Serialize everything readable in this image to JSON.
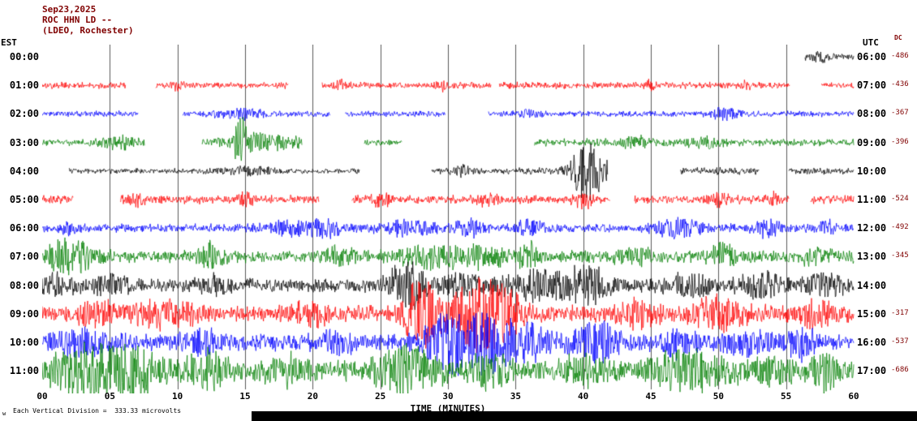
{
  "header": {
    "date": "Sep23,2025",
    "station": "ROC HHN LD --",
    "location": "(LDEO, Rochester)"
  },
  "axes": {
    "left_header": "EST",
    "right_header": "UTC",
    "dc_header": "DC",
    "x_label": "TIME (MINUTES)",
    "x_ticks": [
      "00",
      "05",
      "10",
      "15",
      "20",
      "25",
      "30",
      "35",
      "40",
      "45",
      "50",
      "55",
      "60"
    ]
  },
  "footer": {
    "corner": "w",
    "caption": "Each Vertical Division =  333.33 microvolts"
  },
  "chart_data": {
    "type": "line",
    "kind": "helicorder-seismogram",
    "title": "Sep23,2025 ROC HHN LD -- (LDEO, Rochester)",
    "xlabel": "TIME (MINUTES)",
    "x_range_minutes": [
      0,
      60
    ],
    "minutes_per_row": 60,
    "vertical_division_microvolts": 333.33,
    "grid_minutes": 5,
    "rows": [
      {
        "est": "00:00",
        "utc": "06:00",
        "dc": "-486",
        "color": "#000000",
        "segments": [
          [
            56.4,
            60,
            3.5
          ]
        ],
        "events": [
          [
            57.6,
            0.3,
            5
          ]
        ]
      },
      {
        "est": "01:00",
        "utc": "07:00",
        "dc": "-436",
        "color": "#ff0000",
        "segments": [
          [
            0,
            6.2,
            3.2
          ],
          [
            8.4,
            18.2,
            3.2
          ],
          [
            20.7,
            33.2,
            3.2
          ],
          [
            33.8,
            55.3,
            3.2
          ],
          [
            57.6,
            60,
            3.2
          ]
        ],
        "events": [
          [
            10,
            0.3,
            5
          ],
          [
            22,
            0.3,
            5
          ],
          [
            29.5,
            0.3,
            6
          ],
          [
            45,
            0.3,
            5
          ],
          [
            52,
            0.3,
            5
          ]
        ]
      },
      {
        "est": "02:00",
        "utc": "08:00",
        "dc": "-367",
        "color": "#0000ff",
        "segments": [
          [
            0,
            7.1,
            2.8
          ],
          [
            10.4,
            21.3,
            2.8
          ],
          [
            22.4,
            29.8,
            2.8
          ],
          [
            33,
            60,
            2.8
          ]
        ],
        "events": [
          [
            14.6,
            1.2,
            5
          ],
          [
            36,
            0.5,
            4
          ],
          [
            50.6,
            0.8,
            6
          ]
        ]
      },
      {
        "est": "03:00",
        "utc": "09:00",
        "dc": "-396",
        "color": "#007f00",
        "segments": [
          [
            0,
            7.6,
            3
          ],
          [
            11.8,
            19.2,
            3
          ],
          [
            23.8,
            26.6,
            3
          ],
          [
            36.4,
            60,
            3.5
          ]
        ],
        "events": [
          [
            5.5,
            1,
            7
          ],
          [
            14.7,
            0.35,
            26
          ],
          [
            16.5,
            2,
            9
          ],
          [
            44,
            1,
            5
          ],
          [
            49,
            0.8,
            6
          ]
        ]
      },
      {
        "est": "04:00",
        "utc": "10:00",
        "dc": "",
        "color": "#000000",
        "segments": [
          [
            2,
            23.5,
            2.6
          ],
          [
            28.8,
            41.8,
            3.2
          ],
          [
            47.2,
            53,
            3.5
          ],
          [
            55.2,
            60,
            3.5
          ]
        ],
        "events": [
          [
            15,
            1.5,
            4
          ],
          [
            31,
            0.5,
            5
          ],
          [
            40.4,
            0.9,
            34
          ]
        ]
      },
      {
        "est": "05:00",
        "utc": "11:00",
        "dc": "-524",
        "color": "#ff0000",
        "segments": [
          [
            0,
            2.3,
            4
          ],
          [
            5.8,
            20.5,
            4
          ],
          [
            22.9,
            42,
            4
          ],
          [
            43.8,
            55.2,
            4
          ],
          [
            56.8,
            60,
            4
          ]
        ],
        "events": [
          [
            7,
            0.5,
            7
          ],
          [
            15,
            0.4,
            6
          ],
          [
            25,
            0.5,
            7
          ],
          [
            33,
            0.5,
            7
          ],
          [
            40,
            0.5,
            8
          ],
          [
            50,
            0.5,
            7
          ],
          [
            54,
            0.4,
            6
          ]
        ]
      },
      {
        "est": "06:00",
        "utc": "12:00",
        "dc": "-492",
        "color": "#0000ff",
        "segments": [
          [
            0,
            60,
            4
          ]
        ],
        "events": [
          [
            2,
            0.5,
            6
          ],
          [
            18.5,
            1.5,
            7
          ],
          [
            21,
            0.8,
            8
          ],
          [
            27,
            1.5,
            8
          ],
          [
            31.5,
            0.8,
            9
          ],
          [
            36,
            0.8,
            8
          ],
          [
            47,
            1.2,
            10
          ],
          [
            53.5,
            0.8,
            8
          ],
          [
            58,
            0.5,
            7
          ]
        ]
      },
      {
        "est": "07:00",
        "utc": "13:00",
        "dc": "-345",
        "color": "#007f00",
        "segments": [
          [
            0,
            60,
            6
          ]
        ],
        "events": [
          [
            1.5,
            0.8,
            16
          ],
          [
            3,
            0.8,
            12
          ],
          [
            12.5,
            0.6,
            12
          ],
          [
            22,
            0.8,
            8
          ],
          [
            29,
            2,
            10
          ],
          [
            33,
            1,
            10
          ],
          [
            36,
            0.5,
            15
          ],
          [
            44,
            1,
            8
          ],
          [
            50.5,
            0.8,
            13
          ],
          [
            57,
            0.8,
            8
          ]
        ]
      },
      {
        "est": "08:00",
        "utc": "14:00",
        "dc": "",
        "color": "#000000",
        "segments": [
          [
            0,
            60,
            7
          ]
        ],
        "events": [
          [
            1,
            1,
            8
          ],
          [
            5,
            1,
            8
          ],
          [
            13,
            1,
            8
          ],
          [
            27,
            0.9,
            26
          ],
          [
            31,
            1,
            10
          ],
          [
            37,
            2,
            13
          ],
          [
            40.5,
            1.2,
            15
          ],
          [
            48,
            1,
            10
          ],
          [
            53,
            1,
            12
          ],
          [
            58,
            1,
            10
          ]
        ]
      },
      {
        "est": "09:00",
        "utc": "15:00",
        "dc": "-317",
        "color": "#ff0000",
        "segments": [
          [
            0,
            60,
            8
          ]
        ],
        "events": [
          [
            4,
            1,
            10
          ],
          [
            9,
            1.5,
            12
          ],
          [
            20,
            1,
            10
          ],
          [
            28,
            0.8,
            42
          ],
          [
            31.8,
            1.2,
            38
          ],
          [
            34,
            1,
            28
          ],
          [
            44,
            1,
            12
          ],
          [
            50,
            1.5,
            14
          ],
          [
            57,
            1,
            12
          ]
        ]
      },
      {
        "est": "10:00",
        "utc": "16:00",
        "dc": "-537",
        "color": "#0000ff",
        "segments": [
          [
            0,
            60,
            8
          ]
        ],
        "events": [
          [
            3,
            1.5,
            12
          ],
          [
            12,
            1,
            10
          ],
          [
            22,
            1,
            10
          ],
          [
            30,
            1.2,
            26
          ],
          [
            33,
            1.5,
            28
          ],
          [
            36,
            1,
            18
          ],
          [
            41,
            1.2,
            20
          ],
          [
            47,
            1,
            14
          ],
          [
            52,
            1,
            12
          ],
          [
            56,
            0.8,
            16
          ]
        ]
      },
      {
        "est": "11:00",
        "utc": "17:00",
        "dc": "-686",
        "color": "#007f00",
        "segments": [
          [
            0,
            60,
            10
          ]
        ],
        "events": [
          [
            3,
            1.5,
            26
          ],
          [
            6.5,
            1.5,
            24
          ],
          [
            12,
            1,
            16
          ],
          [
            18,
            1,
            12
          ],
          [
            27,
            1.5,
            22
          ],
          [
            33,
            1,
            14
          ],
          [
            40,
            1,
            14
          ],
          [
            48,
            2,
            18
          ],
          [
            54,
            1,
            12
          ],
          [
            58,
            0.8,
            16
          ]
        ]
      }
    ]
  }
}
